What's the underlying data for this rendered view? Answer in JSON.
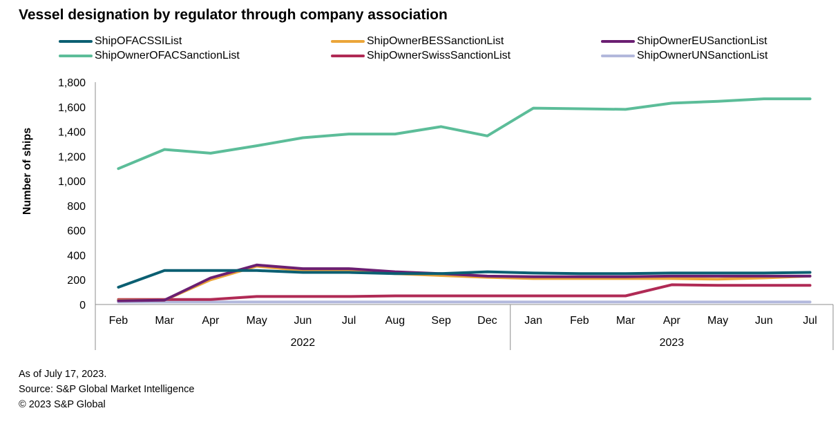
{
  "title": "Vessel designation by regulator through company association",
  "notes": {
    "as_of": "As of July 17, 2023.",
    "source": "Source: S&P Global Market Intelligence",
    "copyright": "© 2023 S&P Global"
  },
  "chart_data": {
    "type": "line",
    "title": "Vessel designation by regulator through company association",
    "xlabel": "",
    "ylabel": "Number of ships",
    "ylim": [
      0,
      1800
    ],
    "yticks": [
      "0",
      "200",
      "400",
      "600",
      "800",
      "1,000",
      "1,200",
      "1,400",
      "1,600",
      "1,800"
    ],
    "grid": false,
    "legend_position": "top",
    "categories": [
      "Feb",
      "Mar",
      "Apr",
      "May",
      "Jun",
      "Jul",
      "Aug",
      "Sep",
      "Dec",
      "Jan",
      "Feb",
      "Mar",
      "Apr",
      "May",
      "Jun",
      "Jul"
    ],
    "groups": [
      {
        "label": "2022",
        "count": 9
      },
      {
        "label": "2023",
        "count": 7
      }
    ],
    "series": [
      {
        "name": "ShipOFACSSIList",
        "color": "#0b5f72",
        "values": [
          140,
          275,
          275,
          275,
          260,
          260,
          250,
          250,
          265,
          255,
          250,
          250,
          255,
          255,
          255,
          260
        ]
      },
      {
        "name": "ShipOwnerBESSanctionList",
        "color": "#eba53a",
        "values": [
          35,
          35,
          200,
          310,
          275,
          270,
          250,
          235,
          220,
          210,
          210,
          210,
          210,
          205,
          215,
          230
        ]
      },
      {
        "name": "ShipOwnerEUSanctionList",
        "color": "#6b1f72",
        "values": [
          30,
          35,
          215,
          320,
          290,
          290,
          265,
          250,
          230,
          225,
          225,
          225,
          230,
          230,
          230,
          230
        ]
      },
      {
        "name": "ShipOwnerOFACSanctionList",
        "color": "#5cbd99",
        "values": [
          1100,
          1255,
          1225,
          1285,
          1350,
          1380,
          1380,
          1440,
          1365,
          1590,
          1585,
          1580,
          1630,
          1645,
          1665,
          1665
        ]
      },
      {
        "name": "ShipOwnerSwissSanctionList",
        "color": "#b02a55",
        "values": [
          40,
          40,
          40,
          65,
          65,
          65,
          70,
          70,
          70,
          70,
          70,
          70,
          160,
          155,
          155,
          155
        ]
      },
      {
        "name": "ShipOwnerUNSanctionList",
        "color": "#b2b8dc",
        "values": [
          20,
          20,
          20,
          20,
          20,
          20,
          20,
          20,
          20,
          20,
          20,
          20,
          20,
          20,
          20,
          20
        ]
      }
    ]
  }
}
